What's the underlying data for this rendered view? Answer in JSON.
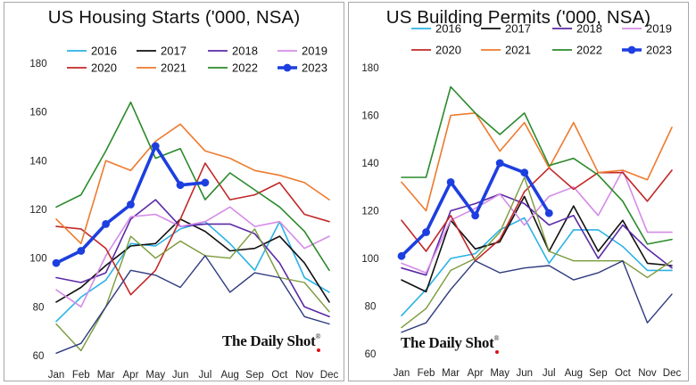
{
  "chart_data": [
    {
      "type": "line",
      "title": "US Housing Starts ('000, NSA)",
      "xlabel": "",
      "ylabel": "",
      "categories": [
        "Jan",
        "Feb",
        "Mar",
        "Apr",
        "May",
        "Jun",
        "Jul",
        "Aug",
        "Sep",
        "Oct",
        "Nov",
        "Dec"
      ],
      "ylim": [
        60,
        180
      ],
      "yticks": [
        60,
        80,
        100,
        120,
        140,
        160,
        180
      ],
      "grid": false,
      "legend_position": "top",
      "brand": "The Daily Shot",
      "brand_mark": "®",
      "series": [
        {
          "name": "2016",
          "color": "#2bb3e6",
          "width": 1.6,
          "marker": false,
          "values": [
            74,
            84,
            91,
            106,
            105,
            112,
            115,
            106,
            95,
            115,
            92,
            86
          ]
        },
        {
          "name": "2017",
          "color": "#111111",
          "width": 1.6,
          "marker": false,
          "values": [
            82,
            88,
            97,
            105,
            106,
            116,
            111,
            103,
            104,
            109,
            98,
            82
          ]
        },
        {
          "name": "2018",
          "color": "#5b2aa6",
          "width": 1.6,
          "marker": false,
          "values": [
            92,
            90,
            94,
            116,
            124,
            113,
            114,
            114,
            110,
            98,
            80,
            76
          ]
        },
        {
          "name": "2019",
          "color": "#d58be6",
          "width": 1.6,
          "marker": false,
          "values": [
            87,
            80,
            101,
            117,
            118,
            113,
            115,
            121,
            113,
            115,
            104,
            109
          ]
        },
        {
          "name": "2020",
          "color": "#c22828",
          "width": 1.6,
          "marker": false,
          "values": [
            113,
            112,
            104,
            85,
            95,
            116,
            139,
            124,
            126,
            131,
            118,
            115
          ]
        },
        {
          "name": "2021",
          "color": "#ee7a2e",
          "width": 1.6,
          "marker": false,
          "values": [
            116,
            106,
            140,
            136,
            148,
            155,
            144,
            141,
            136,
            134,
            131,
            124
          ]
        },
        {
          "name": "2022",
          "color": "#2b8a2b",
          "width": 1.6,
          "marker": false,
          "values": [
            121,
            126,
            144,
            164,
            141,
            145,
            124,
            135,
            128,
            121,
            111,
            95
          ]
        },
        {
          "name": "",
          "color": "#7a9a3a",
          "width": 1.4,
          "marker": false,
          "legend": false,
          "values": [
            73,
            62,
            80,
            109,
            100,
            107,
            101,
            100,
            112,
            92,
            90,
            78
          ]
        },
        {
          "name": "",
          "color": "#2e3a7e",
          "width": 1.4,
          "marker": false,
          "legend": false,
          "values": [
            61,
            65,
            80,
            95,
            93,
            88,
            101,
            86,
            94,
            92,
            76,
            73
          ]
        },
        {
          "name": "2023",
          "color": "#1d3fe0",
          "width": 3.6,
          "marker": true,
          "values": [
            98,
            103,
            114,
            122,
            146,
            130,
            131,
            null,
            null,
            null,
            null,
            null
          ]
        }
      ]
    },
    {
      "type": "line",
      "title": "US Building Permits ('000, NSA)",
      "xlabel": "",
      "ylabel": "",
      "categories": [
        "Jan",
        "Feb",
        "Mar",
        "Apr",
        "May",
        "Jun",
        "Jul",
        "Aug",
        "Sep",
        "Oct",
        "Nov",
        "Dec"
      ],
      "ylim": [
        60,
        180
      ],
      "yticks": [
        60,
        80,
        100,
        120,
        140,
        160,
        180
      ],
      "grid": false,
      "legend_position": "top",
      "brand": "The Daily Shot",
      "brand_mark": "®",
      "series": [
        {
          "name": "2016",
          "color": "#2bb3e6",
          "width": 1.6,
          "marker": false,
          "values": [
            76,
            87,
            100,
            102,
            112,
            117,
            98,
            112,
            112,
            105,
            95,
            95
          ]
        },
        {
          "name": "2017",
          "color": "#111111",
          "width": 1.6,
          "marker": false,
          "values": [
            91,
            86,
            116,
            104,
            107,
            126,
            103,
            122,
            103,
            116,
            98,
            97
          ]
        },
        {
          "name": "2018",
          "color": "#5b2aa6",
          "width": 1.6,
          "marker": false,
          "values": [
            96,
            93,
            120,
            123,
            127,
            123,
            114,
            118,
            100,
            114,
            104,
            96
          ]
        },
        {
          "name": "2019",
          "color": "#d58be6",
          "width": 1.6,
          "marker": false,
          "values": [
            98,
            94,
            116,
            121,
            127,
            114,
            126,
            130,
            118,
            137,
            111,
            111
          ]
        },
        {
          "name": "2020",
          "color": "#c22828",
          "width": 1.6,
          "marker": false,
          "values": [
            116,
            103,
            118,
            99,
            108,
            128,
            138,
            129,
            136,
            136,
            124,
            137
          ]
        },
        {
          "name": "2021",
          "color": "#ee7a2e",
          "width": 1.6,
          "marker": false,
          "values": [
            132,
            120,
            160,
            161,
            145,
            157,
            138,
            157,
            136,
            137,
            133,
            155
          ]
        },
        {
          "name": "2022",
          "color": "#2b8a2b",
          "width": 1.6,
          "marker": false,
          "values": [
            134,
            134,
            172,
            161,
            152,
            161,
            139,
            142,
            135,
            124,
            106,
            108
          ]
        },
        {
          "name": "",
          "color": "#7a9a3a",
          "width": 1.4,
          "marker": false,
          "legend": false,
          "values": [
            71,
            79,
            95,
            100,
            111,
            134,
            103,
            99,
            99,
            99,
            92,
            99
          ]
        },
        {
          "name": "",
          "color": "#2e3a7e",
          "width": 1.4,
          "marker": false,
          "legend": false,
          "values": [
            69,
            73,
            87,
            99,
            94,
            96,
            97,
            91,
            94,
            99,
            73,
            85
          ]
        },
        {
          "name": "2023",
          "color": "#1d3fe0",
          "width": 3.6,
          "marker": true,
          "values": [
            101,
            111,
            132,
            118,
            140,
            136,
            119,
            null,
            null,
            null,
            null,
            null
          ]
        }
      ]
    }
  ]
}
